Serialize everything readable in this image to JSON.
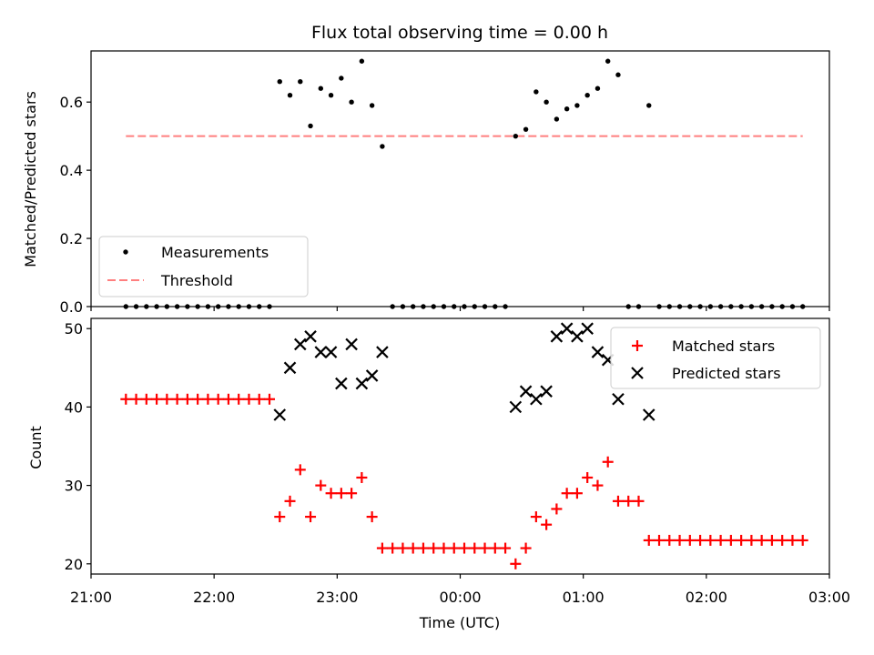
{
  "chart_data": [
    {
      "type": "scatter",
      "panel": "top",
      "title": "Flux total observing time = 0.00 h",
      "xlabel": "",
      "ylabel": "Matched/Predicted stars",
      "xlim": [
        "21:00",
        "03:00"
      ],
      "ylim": [
        0,
        0.75
      ],
      "yticks": [
        0.0,
        0.2,
        0.4,
        0.6
      ],
      "ytick_labels": [
        "0.0",
        "0.2",
        "0.4",
        "0.6"
      ],
      "grid": false,
      "legend_position": "lower-left",
      "colors": {
        "measurements": "#000000",
        "threshold": "#ff7f7f"
      },
      "series": [
        {
          "name": "Measurements",
          "kind": "points",
          "points": [
            [
              "21:17",
              0.0
            ],
            [
              "21:22",
              0.0
            ],
            [
              "21:27",
              0.0
            ],
            [
              "21:32",
              0.0
            ],
            [
              "21:37",
              0.0
            ],
            [
              "21:42",
              0.0
            ],
            [
              "21:47",
              0.0
            ],
            [
              "21:52",
              0.0
            ],
            [
              "21:57",
              0.0
            ],
            [
              "22:02",
              0.0
            ],
            [
              "22:07",
              0.0
            ],
            [
              "22:12",
              0.0
            ],
            [
              "22:17",
              0.0
            ],
            [
              "22:22",
              0.0
            ],
            [
              "22:27",
              0.0
            ],
            [
              "22:32",
              0.66
            ],
            [
              "22:37",
              0.62
            ],
            [
              "22:42",
              0.66
            ],
            [
              "22:47",
              0.53
            ],
            [
              "22:52",
              0.64
            ],
            [
              "22:57",
              0.62
            ],
            [
              "23:02",
              0.67
            ],
            [
              "23:07",
              0.6
            ],
            [
              "23:12",
              0.72
            ],
            [
              "23:17",
              0.59
            ],
            [
              "23:22",
              0.47
            ],
            [
              "23:27",
              0.0
            ],
            [
              "23:32",
              0.0
            ],
            [
              "23:37",
              0.0
            ],
            [
              "23:42",
              0.0
            ],
            [
              "23:47",
              0.0
            ],
            [
              "23:52",
              0.0
            ],
            [
              "23:57",
              0.0
            ],
            [
              "00:02",
              0.0
            ],
            [
              "00:07",
              0.0
            ],
            [
              "00:12",
              0.0
            ],
            [
              "00:17",
              0.0
            ],
            [
              "00:22",
              0.0
            ],
            [
              "00:27",
              0.5
            ],
            [
              "00:32",
              0.52
            ],
            [
              "00:37",
              0.63
            ],
            [
              "00:42",
              0.6
            ],
            [
              "00:47",
              0.55
            ],
            [
              "00:52",
              0.58
            ],
            [
              "00:57",
              0.59
            ],
            [
              "01:02",
              0.62
            ],
            [
              "01:07",
              0.64
            ],
            [
              "01:12",
              0.72
            ],
            [
              "01:17",
              0.68
            ],
            [
              "01:22",
              0.0
            ],
            [
              "01:27",
              0.0
            ],
            [
              "01:32",
              0.59
            ],
            [
              "01:37",
              0.0
            ],
            [
              "01:42",
              0.0
            ],
            [
              "01:47",
              0.0
            ],
            [
              "01:52",
              0.0
            ],
            [
              "01:57",
              0.0
            ],
            [
              "02:02",
              0.0
            ],
            [
              "02:07",
              0.0
            ],
            [
              "02:12",
              0.0
            ],
            [
              "02:17",
              0.0
            ],
            [
              "02:22",
              0.0
            ],
            [
              "02:27",
              0.0
            ],
            [
              "02:32",
              0.0
            ],
            [
              "02:37",
              0.0
            ],
            [
              "02:42",
              0.0
            ],
            [
              "02:47",
              0.0
            ]
          ]
        },
        {
          "name": "Threshold",
          "kind": "dashed-line",
          "points": [
            [
              "21:17",
              0.5
            ],
            [
              "02:47",
              0.5
            ]
          ]
        }
      ]
    },
    {
      "type": "scatter",
      "panel": "bottom",
      "title": "",
      "xlabel": "Time (UTC)",
      "ylabel": "Count",
      "xlim": [
        "21:00",
        "03:00"
      ],
      "xticks": [
        "21:00",
        "22:00",
        "23:00",
        "00:00",
        "01:00",
        "02:00",
        "03:00"
      ],
      "ylim": [
        18.7,
        51.3
      ],
      "yticks": [
        20,
        30,
        40,
        50
      ],
      "grid": false,
      "legend_position": "upper-right",
      "colors": {
        "matched": "#ff0000",
        "predicted": "#000000"
      },
      "series": [
        {
          "name": "Matched stars",
          "marker": "plus",
          "points": [
            [
              "21:17",
              41
            ],
            [
              "21:22",
              41
            ],
            [
              "21:27",
              41
            ],
            [
              "21:32",
              41
            ],
            [
              "21:37",
              41
            ],
            [
              "21:42",
              41
            ],
            [
              "21:47",
              41
            ],
            [
              "21:52",
              41
            ],
            [
              "21:57",
              41
            ],
            [
              "22:02",
              41
            ],
            [
              "22:07",
              41
            ],
            [
              "22:12",
              41
            ],
            [
              "22:17",
              41
            ],
            [
              "22:22",
              41
            ],
            [
              "22:27",
              41
            ],
            [
              "22:32",
              26
            ],
            [
              "22:37",
              28
            ],
            [
              "22:42",
              32
            ],
            [
              "22:47",
              26
            ],
            [
              "22:52",
              30
            ],
            [
              "22:57",
              29
            ],
            [
              "23:02",
              29
            ],
            [
              "23:07",
              29
            ],
            [
              "23:12",
              31
            ],
            [
              "23:17",
              26
            ],
            [
              "23:22",
              22
            ],
            [
              "23:27",
              22
            ],
            [
              "23:32",
              22
            ],
            [
              "23:37",
              22
            ],
            [
              "23:42",
              22
            ],
            [
              "23:47",
              22
            ],
            [
              "23:52",
              22
            ],
            [
              "23:57",
              22
            ],
            [
              "00:02",
              22
            ],
            [
              "00:07",
              22
            ],
            [
              "00:12",
              22
            ],
            [
              "00:17",
              22
            ],
            [
              "00:22",
              22
            ],
            [
              "00:27",
              20
            ],
            [
              "00:32",
              22
            ],
            [
              "00:37",
              26
            ],
            [
              "00:42",
              25
            ],
            [
              "00:47",
              27
            ],
            [
              "00:52",
              29
            ],
            [
              "00:57",
              29
            ],
            [
              "01:02",
              31
            ],
            [
              "01:07",
              30
            ],
            [
              "01:12",
              33
            ],
            [
              "01:17",
              28
            ],
            [
              "01:22",
              28
            ],
            [
              "01:27",
              28
            ],
            [
              "01:32",
              23
            ],
            [
              "01:37",
              23
            ],
            [
              "01:42",
              23
            ],
            [
              "01:47",
              23
            ],
            [
              "01:52",
              23
            ],
            [
              "01:57",
              23
            ],
            [
              "02:02",
              23
            ],
            [
              "02:07",
              23
            ],
            [
              "02:12",
              23
            ],
            [
              "02:17",
              23
            ],
            [
              "02:22",
              23
            ],
            [
              "02:27",
              23
            ],
            [
              "02:32",
              23
            ],
            [
              "02:37",
              23
            ],
            [
              "02:42",
              23
            ],
            [
              "02:47",
              23
            ]
          ]
        },
        {
          "name": "Predicted stars",
          "marker": "x",
          "points": [
            [
              "22:32",
              39
            ],
            [
              "22:37",
              45
            ],
            [
              "22:42",
              48
            ],
            [
              "22:47",
              49
            ],
            [
              "22:52",
              47
            ],
            [
              "22:57",
              47
            ],
            [
              "23:02",
              43
            ],
            [
              "23:07",
              48
            ],
            [
              "23:12",
              43
            ],
            [
              "23:17",
              44
            ],
            [
              "23:22",
              47
            ],
            [
              "00:27",
              40
            ],
            [
              "00:32",
              42
            ],
            [
              "00:37",
              41
            ],
            [
              "00:42",
              42
            ],
            [
              "00:47",
              49
            ],
            [
              "00:52",
              50
            ],
            [
              "00:57",
              49
            ],
            [
              "01:02",
              50
            ],
            [
              "01:07",
              47
            ],
            [
              "01:12",
              46
            ],
            [
              "01:17",
              41
            ],
            [
              "01:32",
              39
            ]
          ]
        }
      ]
    }
  ]
}
